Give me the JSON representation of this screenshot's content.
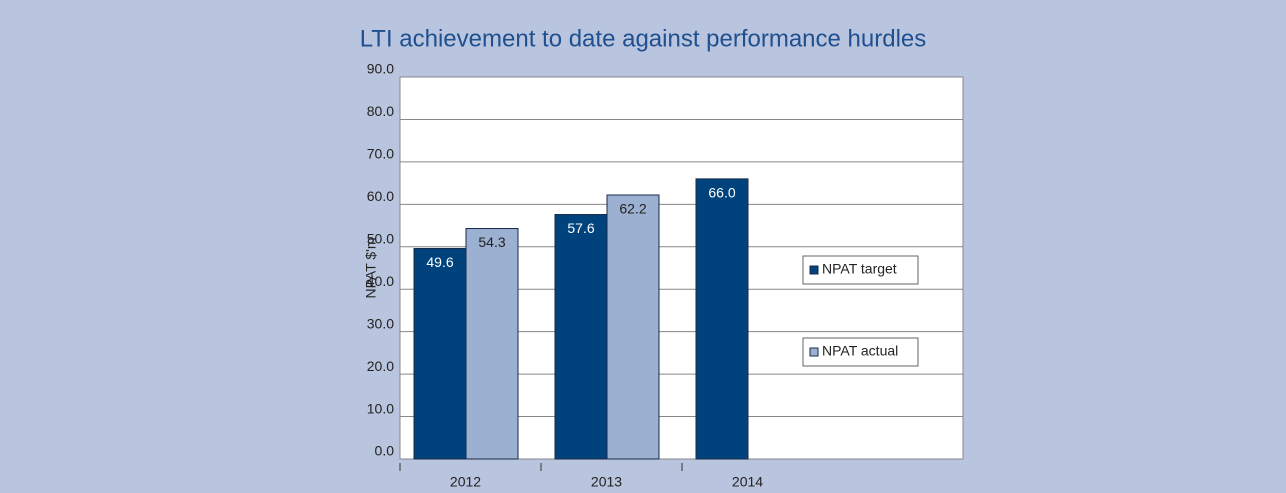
{
  "chart_data": {
    "type": "bar",
    "title": "LTI achievement to date against performance hurdles",
    "y_label": "NPAT $'m",
    "categories": [
      "2012",
      "2013",
      "2014"
    ],
    "series": [
      {
        "name": "NPAT target",
        "color": "#00437c",
        "values": [
          49.6,
          57.6,
          66
        ],
        "value_labels": [
          "49.6",
          "57.6",
          "66.0"
        ]
      },
      {
        "name": "NPAT actual",
        "color": "#9cb0d2",
        "values": [
          54.3,
          62.2,
          null
        ]
      }
    ],
    "ylim": [
      0,
      90
    ],
    "yticks": [
      {
        "value": 0,
        "label": "0.0"
      },
      {
        "value": 10,
        "label": "10.0"
      },
      {
        "value": 20,
        "label": "20.0"
      },
      {
        "value": 30,
        "label": "30.0"
      },
      {
        "value": 40,
        "label": "40.0"
      },
      {
        "value": 50,
        "label": "50.0"
      },
      {
        "value": 60,
        "label": "60.0"
      },
      {
        "value": 70,
        "label": "70.0"
      },
      {
        "value": 80,
        "label": "80.0"
      },
      {
        "value": 90,
        "label": "90.0"
      }
    ],
    "grid": true
  }
}
